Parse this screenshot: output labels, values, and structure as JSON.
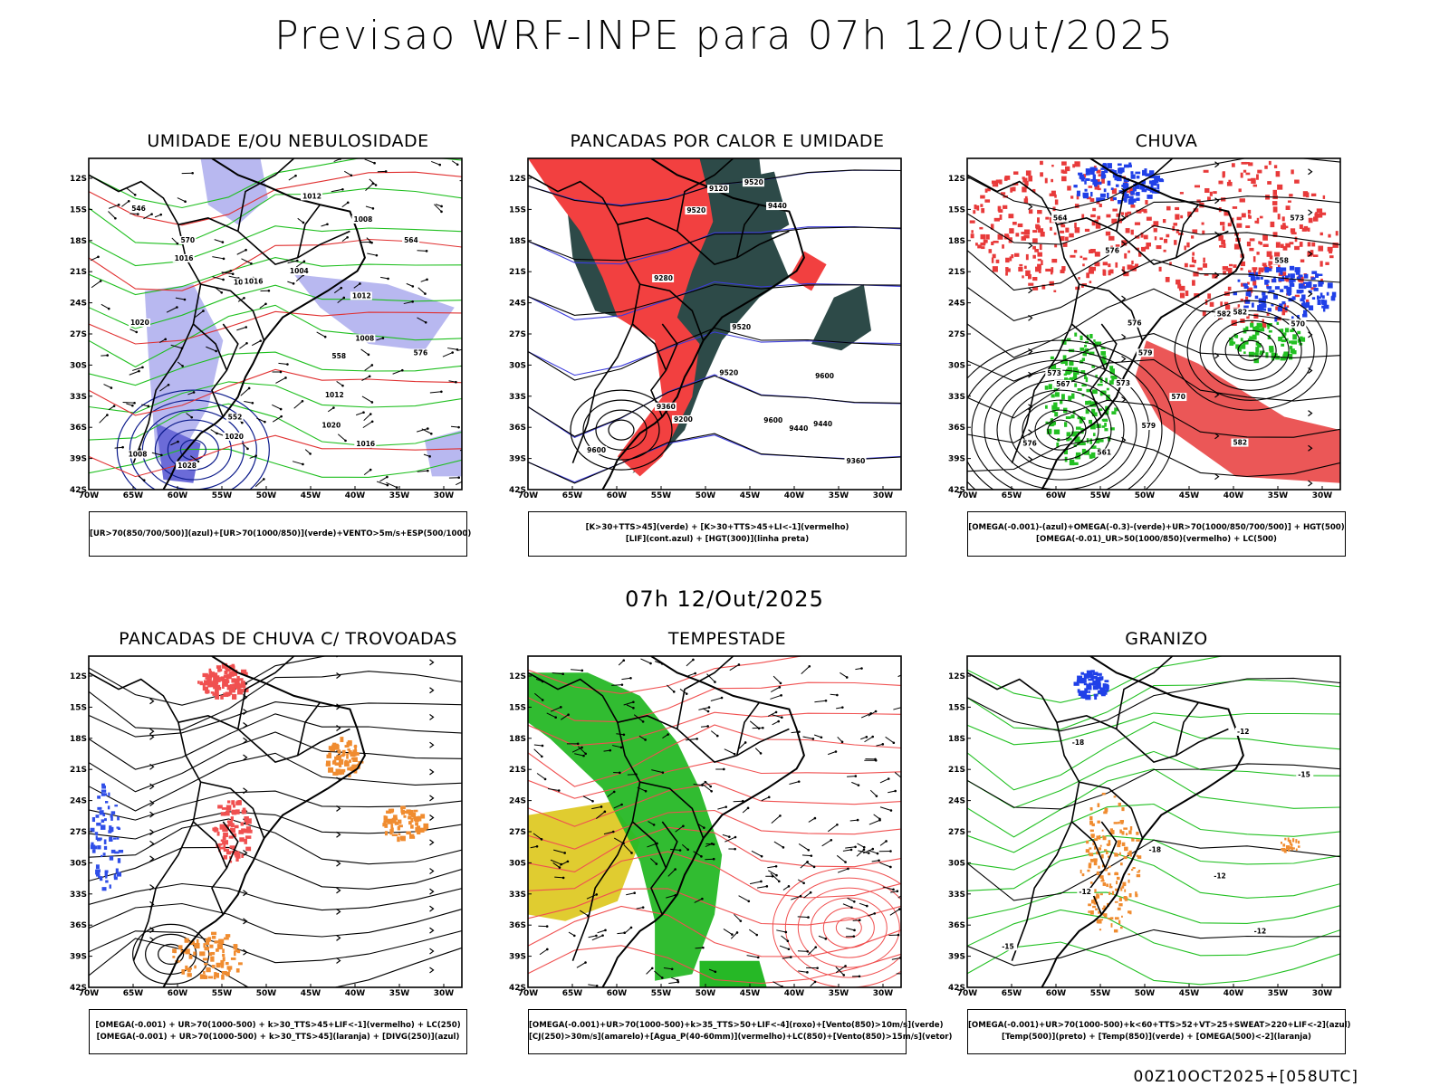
{
  "header": {
    "title": "Previsao WRF-INPE  para 07h 12/Out/2025",
    "mid_time": "07h 12/Out/2025",
    "run_info": "00Z10OCT2025+[058UTC]"
  },
  "axes": {
    "lat_labels": [
      "12S",
      "15S",
      "18S",
      "21S",
      "24S",
      "27S",
      "30S",
      "33S",
      "36S",
      "39S",
      "42S"
    ],
    "lon_labels": [
      "70W",
      "65W",
      "60W",
      "55W",
      "50W",
      "45W",
      "40W",
      "35W",
      "30W"
    ]
  },
  "panels": [
    {
      "title": "UMIDADE E/OU NEBULOSIDADE",
      "legend": [
        "[UR>70(850/700/500)](azul)+[UR>70(1000/850)](verde)+VENTO>5m/s+ESP(500/1000)"
      ],
      "contour_labels": [
        "1012",
        "1012",
        "1008",
        "1016",
        "1016",
        "1020",
        "1020",
        "1012",
        "1008",
        "1008",
        "1004",
        "1012",
        "1016",
        "1020",
        "1028",
        "576",
        "570",
        "564",
        "558",
        "552",
        "546"
      ]
    },
    {
      "title": "PANCADAS POR CALOR E UMIDADE",
      "legend": [
        "[K>30+TTS>45](verde) + [K>30+TTS>45+LI<-1](vermelho)",
        "[LIF](cont.azul) + [HGT(300)](linha preta)"
      ],
      "contour_labels": [
        "9600",
        "9600",
        "9520",
        "9520",
        "9520",
        "9520",
        "9440",
        "9440",
        "9440",
        "9360",
        "9360",
        "9280",
        "9200",
        "9120",
        "9600"
      ]
    },
    {
      "title": "CHUVA",
      "legend": [
        "[OMEGA(-0.001)-(azul)+OMEGA(-0.3)-(verde)+UR>70(1000/850/700/500)] + HGT(500)",
        "[OMEGA(-0.01)_UR>50(1000/850)(vermelho) + LC(500)"
      ],
      "contour_labels": [
        "582",
        "582",
        "582",
        "579",
        "579",
        "576",
        "576",
        "573",
        "573",
        "570",
        "567",
        "564",
        "561",
        "558",
        "576",
        "573",
        "570"
      ]
    },
    {
      "title": "PANCADAS DE CHUVA C/ TROVOADAS",
      "legend": [
        "[OMEGA(-0.001) + UR>70(1000-500) + k>30_TTS>45+LIF<-1](vermelho) + LC(250)",
        "[OMEGA(-0.001) + UR>70(1000-500) + k>30_TTS>45](laranja) + [DIVG(250)](azul)"
      ],
      "contour_labels": []
    },
    {
      "title": "TEMPESTADE",
      "legend": [
        "[OMEGA(-0.001)+UR>70(1000-500)+k>35_TTS>50+LIF<-4](roxo)+[Vento(850)>10m/s](verde)",
        "[CJ(250)>30m/s](amarelo)+[Agua_P(40-60mm)](vermelho)+LC(850)+[Vento(850)>15m/s](vetor)"
      ],
      "contour_labels": []
    },
    {
      "title": "GRANIZO",
      "legend": [
        "[OMEGA(-0.001)+UR>70(1000-500)+k<60+TTS>52+VT>25+SWEAT>220+LIF<-2](azul)",
        "[Temp(500)](preto) + [Temp(850)](verde) + [OMEGA(500)<-2](laranja)"
      ],
      "contour_labels": [
        "-12",
        "-15",
        "-18",
        "-12",
        "-15",
        "-12",
        "-18",
        "-12"
      ]
    }
  ]
}
